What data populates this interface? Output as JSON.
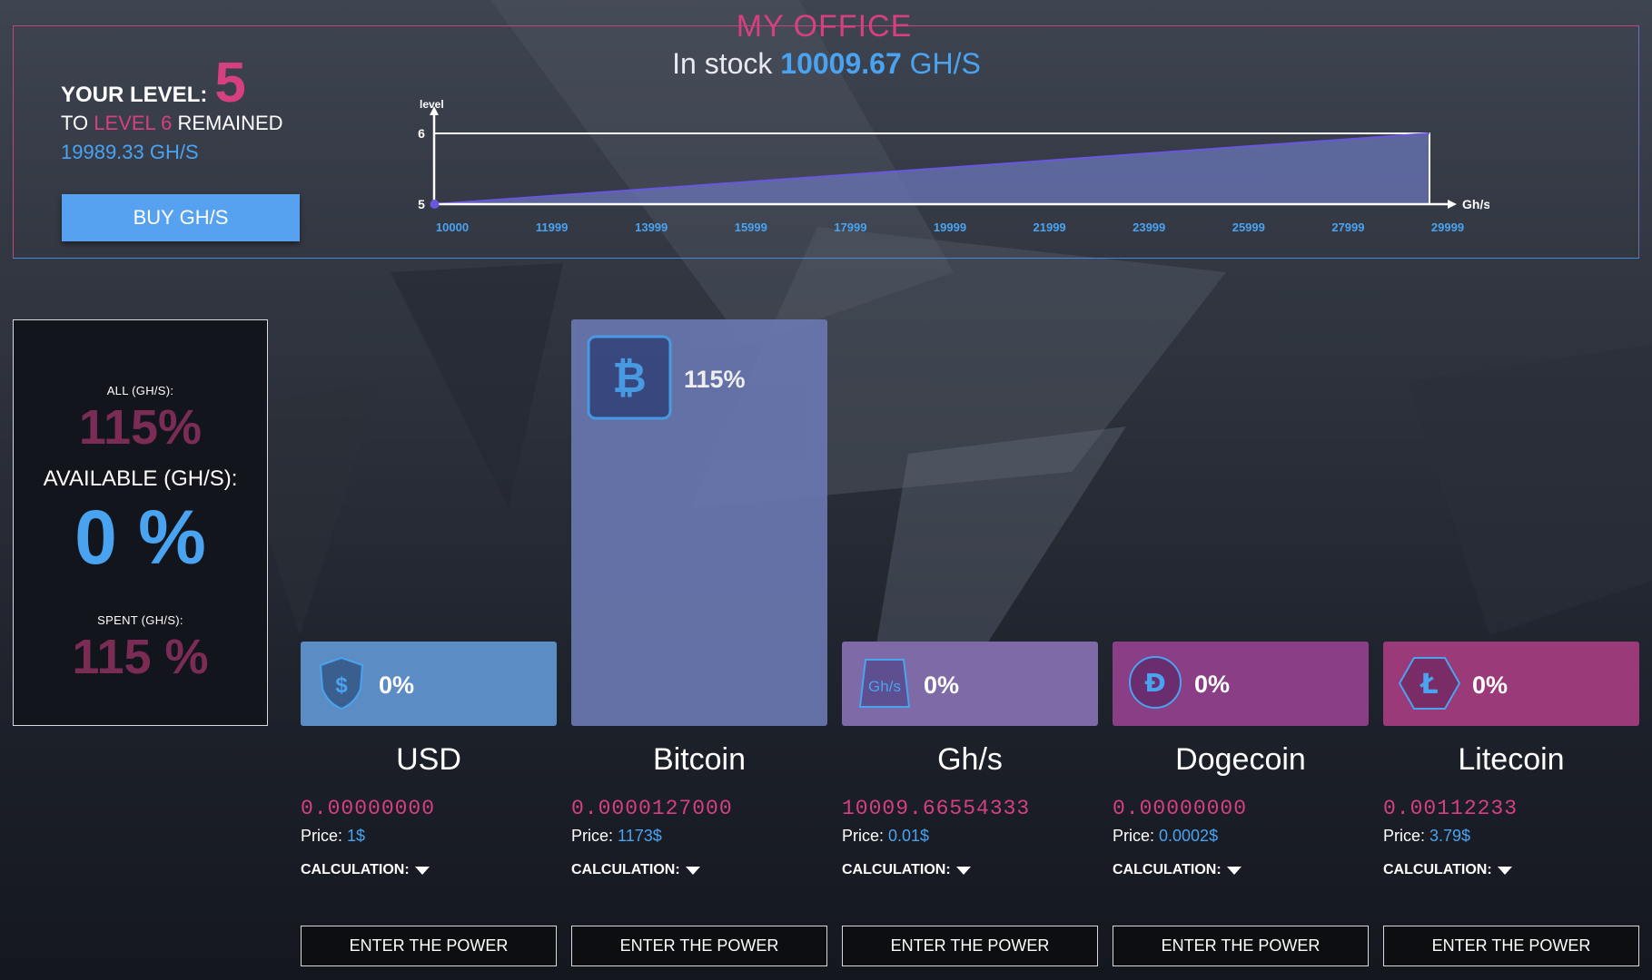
{
  "office": {
    "title": "MY OFFICE",
    "in_stock_label": "In stock",
    "in_stock_value": "10009.67",
    "in_stock_unit": "GH/S"
  },
  "level": {
    "label": "YOUR LEVEL:",
    "current": "5",
    "to_label": "TO",
    "next_level": "LEVEL 6",
    "remained_label": "REMAINED",
    "remained_value": "19989.33 GH/S",
    "buy_label": "BUY GH/S"
  },
  "chart_data": {
    "type": "area",
    "ylabel": "level",
    "xlabel": "Gh/s",
    "yticks": [
      "5",
      "6"
    ],
    "xticks": [
      "10000",
      "11999",
      "13999",
      "15999",
      "17999",
      "19999",
      "21999",
      "23999",
      "25999",
      "27999",
      "29999"
    ],
    "x": [
      10000,
      29999
    ],
    "y": [
      5,
      6
    ],
    "current_x": 10009.67,
    "colors": {
      "fill": "#6a75b8",
      "line": "#6a56e0",
      "axis": "#ffffff",
      "tick": "#4aa3f0"
    }
  },
  "stats": {
    "all_label": "ALL (GH/S):",
    "all_value": "115%",
    "available_label": "AVAILABLE (GH/S):",
    "available_value": "0 %",
    "spent_label": "SPENT (GH/S):",
    "spent_value": "115 %"
  },
  "currencies": [
    {
      "name": "USD",
      "icon": "usd-shield-icon",
      "percent": "0%",
      "fill": 0,
      "amount": "0.00000000",
      "price_label": "Price:",
      "price": "1$",
      "calc_label": "CALCULATION:",
      "enter_label": "ENTER THE POWER",
      "color": "#5c8cc4"
    },
    {
      "name": "Bitcoin",
      "icon": "bitcoin-icon",
      "percent": "115%",
      "fill": 1.15,
      "amount": "0.0000127000",
      "price_label": "Price:",
      "price": "1173$",
      "calc_label": "CALCULATION:",
      "enter_label": "ENTER THE POWER",
      "color": "#6977b0"
    },
    {
      "name": "Gh/s",
      "icon": "ghs-icon",
      "percent": "0%",
      "fill": 0,
      "amount": "10009.66554333",
      "price_label": "Price:",
      "price": "0.01$",
      "calc_label": "CALCULATION:",
      "enter_label": "ENTER THE POWER",
      "color": "#7e6aa6"
    },
    {
      "name": "Dogecoin",
      "icon": "dogecoin-icon",
      "percent": "0%",
      "fill": 0,
      "amount": "0.00000000",
      "price_label": "Price:",
      "price": "0.0002$",
      "calc_label": "CALCULATION:",
      "enter_label": "ENTER THE POWER",
      "color": "#8a3e86"
    },
    {
      "name": "Litecoin",
      "icon": "litecoin-icon",
      "percent": "0%",
      "fill": 0,
      "amount": "0.00112233",
      "price_label": "Price:",
      "price": "3.79$",
      "calc_label": "CALCULATION:",
      "enter_label": "ENTER THE POWER",
      "color": "#9b3a78"
    }
  ]
}
